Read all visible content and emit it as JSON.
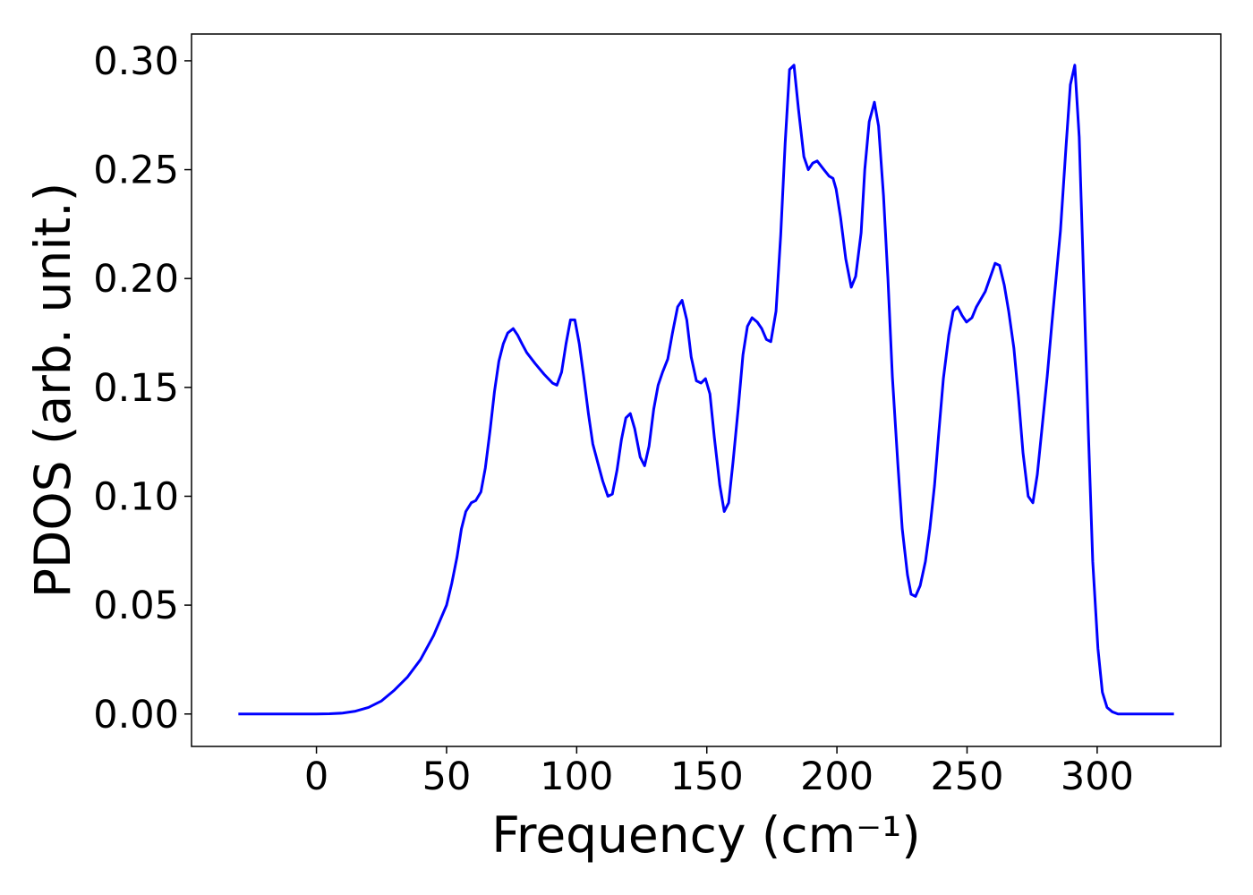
{
  "chart_data": {
    "type": "line",
    "xlabel": "Frequency (cm⁻¹)",
    "ylabel": "PDOS (arb. unit.)",
    "xlim": [
      -48,
      347.5
    ],
    "ylim": [
      -0.0149,
      0.3123
    ],
    "xticks": [
      0,
      50,
      100,
      150,
      200,
      250,
      300
    ],
    "yticks": [
      {
        "value": 0,
        "label": "0.00"
      },
      {
        "value": 0.05,
        "label": "0.05"
      },
      {
        "value": 0.1,
        "label": "0.10"
      },
      {
        "value": 0.15,
        "label": "0.15"
      },
      {
        "value": 0.2,
        "label": "0.20"
      },
      {
        "value": 0.25,
        "label": "0.25"
      },
      {
        "value": 0.3,
        "label": "0.30"
      }
    ],
    "grid": false,
    "series": [
      {
        "color": "#0000ff",
        "x": [
          -30,
          -10,
          0,
          5,
          10,
          15,
          20,
          25,
          30,
          35,
          40,
          45,
          50,
          52,
          54,
          55.7,
          57.4,
          59.5,
          61.2,
          63.2,
          64.9,
          66.7,
          68.4,
          70.1,
          71.8,
          73.5,
          75.6,
          77.3,
          79,
          80.8,
          84,
          87.5,
          90.7,
          92.4,
          94.2,
          95.9,
          97.6,
          99.3,
          101,
          102.7,
          104.5,
          106.2,
          108.2,
          110,
          112,
          113.7,
          115.5,
          117.2,
          118.9,
          120.6,
          122.3,
          124.4,
          126.1,
          127.8,
          129.6,
          131.3,
          133,
          135,
          136.8,
          138.8,
          140.5,
          142.3,
          144,
          146,
          147.8,
          149.5,
          151.2,
          152.9,
          155,
          156.7,
          158.4,
          160.1,
          162.2,
          163.9,
          165.6,
          167.4,
          169.4,
          171.1,
          172.9,
          174.6,
          176.6,
          178.4,
          180.1,
          181.8,
          183.5,
          185.2,
          187.3,
          189,
          190.7,
          192.4,
          195,
          197,
          198.5,
          199.7,
          201.4,
          203.4,
          205.5,
          207.2,
          209.3,
          210.7,
          212.4,
          214.4,
          216,
          217.9,
          219.6,
          221.3,
          223.4,
          225.1,
          227.1,
          228.5,
          230.2,
          232,
          234,
          235.7,
          237.5,
          239.2,
          240.9,
          243,
          244.7,
          246.4,
          248.1,
          249.8,
          251.9,
          253.6,
          257,
          260.8,
          262.5,
          264.3,
          266,
          268,
          269.8,
          271.5,
          273.5,
          275.3,
          277,
          278.7,
          280.8,
          282.5,
          284.2,
          285.9,
          288,
          289.7,
          291.4,
          293.1,
          294.8,
          296.6,
          298.3,
          300.3,
          302,
          303.8,
          305.8,
          308,
          320,
          329.5
        ],
        "values": [
          0,
          0,
          0,
          0.0001,
          0.0004,
          0.0013,
          0.003,
          0.006,
          0.011,
          0.017,
          0.025,
          0.036,
          0.05,
          0.06,
          0.072,
          0.085,
          0.093,
          0.097,
          0.098,
          0.102,
          0.113,
          0.13,
          0.148,
          0.162,
          0.17,
          0.175,
          0.177,
          0.174,
          0.17,
          0.166,
          0.161,
          0.156,
          0.152,
          0.151,
          0.157,
          0.17,
          0.181,
          0.181,
          0.17,
          0.155,
          0.138,
          0.124,
          0.115,
          0.107,
          0.1,
          0.101,
          0.112,
          0.126,
          0.136,
          0.138,
          0.131,
          0.118,
          0.114,
          0.123,
          0.14,
          0.151,
          0.157,
          0.163,
          0.175,
          0.187,
          0.19,
          0.181,
          0.164,
          0.153,
          0.152,
          0.154,
          0.147,
          0.127,
          0.105,
          0.093,
          0.097,
          0.116,
          0.142,
          0.165,
          0.178,
          0.182,
          0.18,
          0.177,
          0.172,
          0.171,
          0.185,
          0.22,
          0.262,
          0.296,
          0.298,
          0.278,
          0.256,
          0.25,
          0.253,
          0.254,
          0.25,
          0.247,
          0.246,
          0.241,
          0.228,
          0.209,
          0.196,
          0.201,
          0.221,
          0.25,
          0.272,
          0.281,
          0.27,
          0.238,
          0.2,
          0.155,
          0.115,
          0.085,
          0.064,
          0.055,
          0.054,
          0.059,
          0.07,
          0.085,
          0.105,
          0.13,
          0.154,
          0.174,
          0.185,
          0.187,
          0.183,
          0.18,
          0.182,
          0.187,
          0.194,
          0.207,
          0.206,
          0.197,
          0.185,
          0.168,
          0.145,
          0.12,
          0.1,
          0.097,
          0.11,
          0.13,
          0.155,
          0.178,
          0.2,
          0.222,
          0.26,
          0.289,
          0.298,
          0.265,
          0.2,
          0.13,
          0.07,
          0.03,
          0.01,
          0.003,
          0.001,
          0,
          0,
          0
        ]
      }
    ]
  }
}
